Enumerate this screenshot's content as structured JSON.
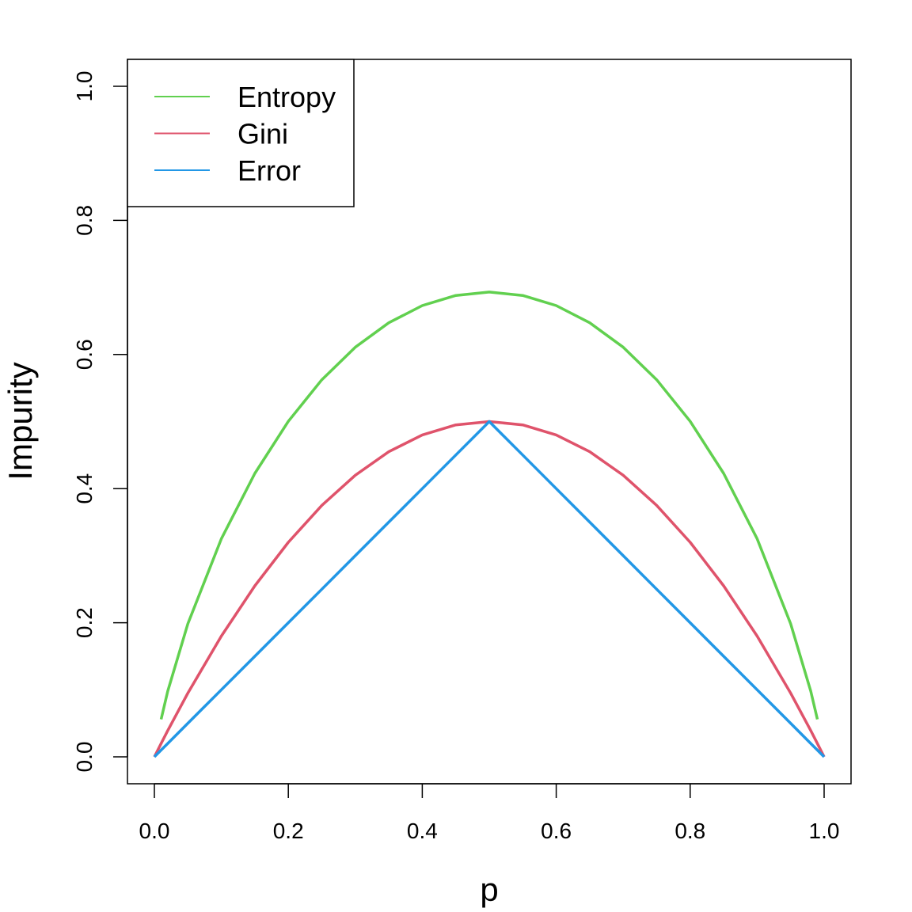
{
  "chart_data": {
    "type": "line",
    "title": "",
    "xlabel": "p",
    "ylabel": "Impurity",
    "xlim": [
      0,
      1
    ],
    "ylim": [
      0,
      1
    ],
    "xticks": [
      "0.0",
      "0.2",
      "0.4",
      "0.6",
      "0.8",
      "1.0"
    ],
    "yticks": [
      "0.0",
      "0.2",
      "0.4",
      "0.6",
      "0.8",
      "1.0"
    ],
    "grid": false,
    "legend_position": "top-left",
    "x": [
      0,
      0.01,
      0.02,
      0.05,
      0.1,
      0.15,
      0.2,
      0.25,
      0.3,
      0.35,
      0.4,
      0.45,
      0.5,
      0.55,
      0.6,
      0.65,
      0.7,
      0.75,
      0.8,
      0.85,
      0.9,
      0.95,
      0.98,
      0.99,
      1
    ],
    "series": [
      {
        "name": "Entropy",
        "color": "#61D04F",
        "values": [
          null,
          0.056,
          0.098,
          0.1985,
          0.3251,
          0.4227,
          0.5004,
          0.5623,
          0.6109,
          0.6474,
          0.673,
          0.6881,
          0.6931,
          0.6881,
          0.673,
          0.6474,
          0.6109,
          0.5623,
          0.5004,
          0.4227,
          0.3251,
          0.1985,
          0.098,
          0.056,
          null
        ]
      },
      {
        "name": "Gini",
        "color": "#DF536B",
        "values": [
          0,
          0.0198,
          0.0392,
          0.095,
          0.18,
          0.255,
          0.32,
          0.375,
          0.42,
          0.455,
          0.48,
          0.495,
          0.5,
          0.495,
          0.48,
          0.455,
          0.42,
          0.375,
          0.32,
          0.255,
          0.18,
          0.095,
          0.0392,
          0.0198,
          0
        ]
      },
      {
        "name": "Error",
        "color": "#2297E6",
        "values": [
          0,
          0.01,
          0.02,
          0.05,
          0.1,
          0.15,
          0.2,
          0.25,
          0.3,
          0.35,
          0.4,
          0.45,
          0.5,
          0.45,
          0.4,
          0.35,
          0.3,
          0.25,
          0.2,
          0.15,
          0.1,
          0.05,
          0.02,
          0.01,
          0
        ]
      }
    ]
  }
}
